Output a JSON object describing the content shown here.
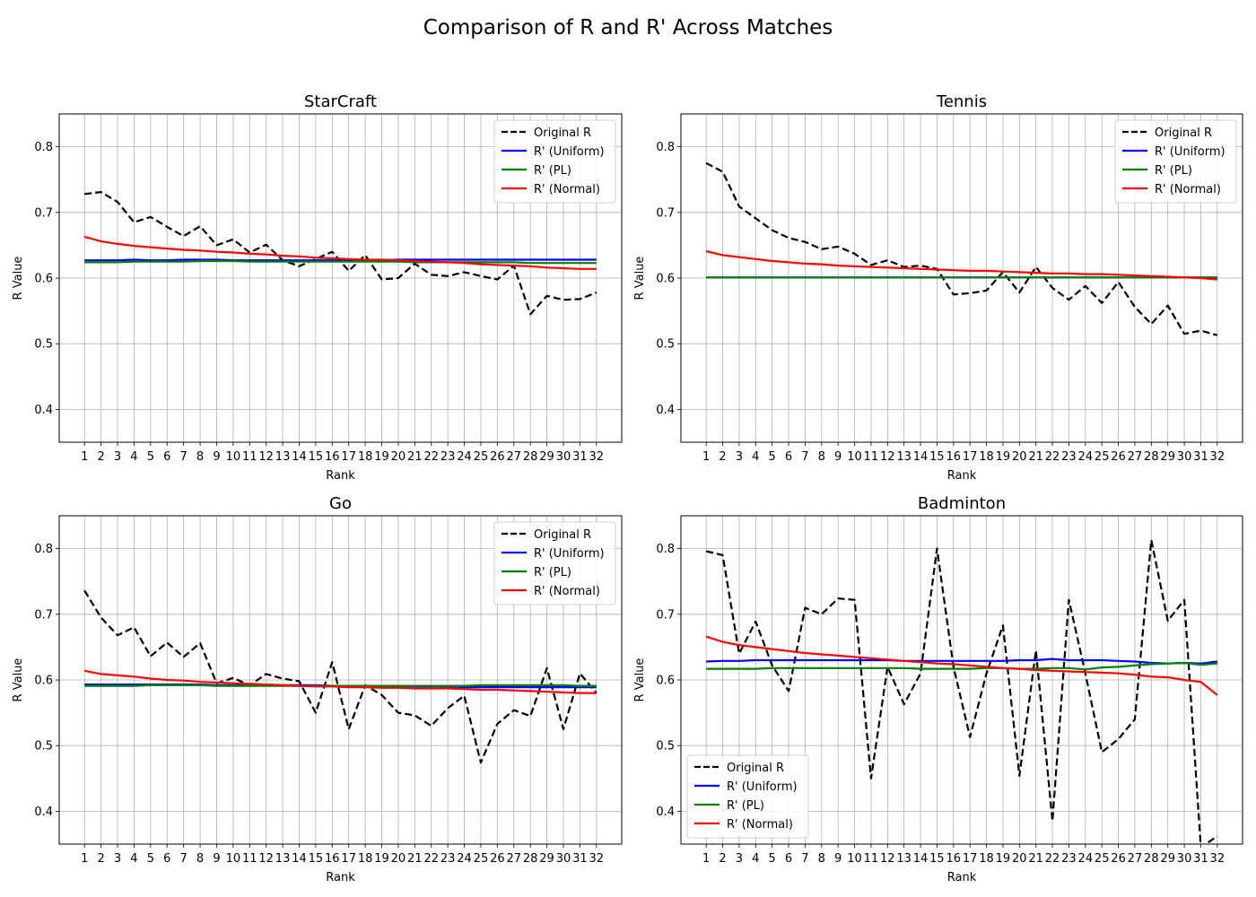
{
  "figure_title": "Comparison of R and R' Across Matches",
  "colors": {
    "original": "#000000",
    "uniform": "#0000ff",
    "pl": "#008000",
    "normal": "#ff0000",
    "grid": "#b0b0b0"
  },
  "chart_data": [
    {
      "type": "line",
      "title": "StarCraft",
      "xlabel": "Rank",
      "ylabel": "R Value",
      "ylim": [
        0.35,
        0.85
      ],
      "yticks": [
        0.4,
        0.5,
        0.6,
        0.7,
        0.8
      ],
      "grid": true,
      "legend_position": "upper-right",
      "x": [
        1,
        2,
        3,
        4,
        5,
        6,
        7,
        8,
        9,
        10,
        11,
        12,
        13,
        14,
        15,
        16,
        17,
        18,
        19,
        20,
        21,
        22,
        23,
        24,
        25,
        26,
        27,
        28,
        29,
        30,
        31,
        32
      ],
      "series": [
        {
          "name": "Original R",
          "color_key": "original",
          "dash": true,
          "values": [
            0.728,
            0.731,
            0.716,
            0.685,
            0.693,
            0.678,
            0.664,
            0.679,
            0.65,
            0.659,
            0.639,
            0.651,
            0.627,
            0.618,
            0.629,
            0.64,
            0.611,
            0.635,
            0.598,
            0.6,
            0.622,
            0.605,
            0.603,
            0.609,
            0.603,
            0.598,
            0.619,
            0.545,
            0.573,
            0.567,
            0.568,
            0.578
          ]
        },
        {
          "name": "R' (Uniform)",
          "color_key": "uniform",
          "dash": false,
          "values": [
            0.627,
            0.627,
            0.627,
            0.628,
            0.627,
            0.627,
            0.628,
            0.628,
            0.628,
            0.627,
            0.627,
            0.627,
            0.627,
            0.627,
            0.627,
            0.627,
            0.627,
            0.627,
            0.627,
            0.628,
            0.628,
            0.628,
            0.628,
            0.628,
            0.628,
            0.628,
            0.628,
            0.628,
            0.628,
            0.628,
            0.628,
            0.628
          ]
        },
        {
          "name": "R' (PL)",
          "color_key": "pl",
          "dash": false,
          "values": [
            0.624,
            0.624,
            0.624,
            0.625,
            0.625,
            0.625,
            0.625,
            0.626,
            0.626,
            0.626,
            0.625,
            0.625,
            0.625,
            0.625,
            0.625,
            0.625,
            0.625,
            0.625,
            0.625,
            0.625,
            0.624,
            0.624,
            0.624,
            0.624,
            0.624,
            0.624,
            0.624,
            0.623,
            0.623,
            0.623,
            0.623,
            0.623
          ]
        },
        {
          "name": "R' (Normal)",
          "color_key": "normal",
          "dash": false,
          "values": [
            0.663,
            0.656,
            0.652,
            0.649,
            0.647,
            0.645,
            0.643,
            0.642,
            0.64,
            0.639,
            0.637,
            0.636,
            0.634,
            0.633,
            0.631,
            0.63,
            0.629,
            0.628,
            0.628,
            0.627,
            0.626,
            0.625,
            0.624,
            0.623,
            0.621,
            0.62,
            0.619,
            0.618,
            0.616,
            0.615,
            0.614,
            0.614
          ]
        }
      ]
    },
    {
      "type": "line",
      "title": "Tennis",
      "xlabel": "Rank",
      "ylabel": "R Value",
      "ylim": [
        0.35,
        0.85
      ],
      "yticks": [
        0.4,
        0.5,
        0.6,
        0.7,
        0.8
      ],
      "grid": true,
      "legend_position": "upper-right",
      "x": [
        1,
        2,
        3,
        4,
        5,
        6,
        7,
        8,
        9,
        10,
        11,
        12,
        13,
        14,
        15,
        16,
        17,
        18,
        19,
        20,
        21,
        22,
        23,
        24,
        25,
        26,
        27,
        28,
        29,
        30,
        31,
        32
      ],
      "series": [
        {
          "name": "Original R",
          "color_key": "original",
          "dash": true,
          "values": [
            0.775,
            0.762,
            0.709,
            0.691,
            0.673,
            0.661,
            0.655,
            0.644,
            0.648,
            0.637,
            0.62,
            0.627,
            0.617,
            0.619,
            0.614,
            0.575,
            0.577,
            0.581,
            0.609,
            0.578,
            0.617,
            0.585,
            0.567,
            0.588,
            0.562,
            0.594,
            0.556,
            0.53,
            0.558,
            0.515,
            0.52,
            0.513
          ]
        },
        {
          "name": "R' (Uniform)",
          "color_key": "uniform",
          "dash": false,
          "values": [
            0.601,
            0.601,
            0.601,
            0.601,
            0.601,
            0.601,
            0.601,
            0.601,
            0.601,
            0.601,
            0.601,
            0.601,
            0.601,
            0.601,
            0.601,
            0.601,
            0.601,
            0.601,
            0.601,
            0.601,
            0.601,
            0.601,
            0.601,
            0.601,
            0.601,
            0.601,
            0.601,
            0.601,
            0.601,
            0.601,
            0.601,
            0.601
          ]
        },
        {
          "name": "R' (PL)",
          "color_key": "pl",
          "dash": false,
          "values": [
            0.601,
            0.601,
            0.601,
            0.601,
            0.601,
            0.601,
            0.601,
            0.601,
            0.601,
            0.601,
            0.601,
            0.601,
            0.601,
            0.601,
            0.601,
            0.601,
            0.601,
            0.601,
            0.601,
            0.601,
            0.601,
            0.601,
            0.601,
            0.601,
            0.601,
            0.601,
            0.601,
            0.601,
            0.601,
            0.601,
            0.601,
            0.601
          ]
        },
        {
          "name": "R' (Normal)",
          "color_key": "normal",
          "dash": false,
          "values": [
            0.641,
            0.635,
            0.632,
            0.629,
            0.626,
            0.624,
            0.622,
            0.621,
            0.619,
            0.618,
            0.617,
            0.616,
            0.615,
            0.614,
            0.613,
            0.612,
            0.611,
            0.611,
            0.61,
            0.609,
            0.608,
            0.607,
            0.607,
            0.606,
            0.606,
            0.605,
            0.604,
            0.603,
            0.602,
            0.601,
            0.6,
            0.598
          ]
        }
      ]
    },
    {
      "type": "line",
      "title": "Go",
      "xlabel": "Rank",
      "ylabel": "R Value",
      "ylim": [
        0.35,
        0.85
      ],
      "yticks": [
        0.4,
        0.5,
        0.6,
        0.7,
        0.8
      ],
      "grid": true,
      "legend_position": "upper-right",
      "x": [
        1,
        2,
        3,
        4,
        5,
        6,
        7,
        8,
        9,
        10,
        11,
        12,
        13,
        14,
        15,
        16,
        17,
        18,
        19,
        20,
        21,
        22,
        23,
        24,
        25,
        26,
        27,
        28,
        29,
        30,
        31,
        32
      ],
      "series": [
        {
          "name": "Original R",
          "color_key": "original",
          "dash": true,
          "values": [
            0.736,
            0.695,
            0.668,
            0.68,
            0.636,
            0.657,
            0.635,
            0.656,
            0.595,
            0.603,
            0.592,
            0.609,
            0.602,
            0.598,
            0.55,
            0.627,
            0.525,
            0.592,
            0.577,
            0.55,
            0.546,
            0.53,
            0.557,
            0.576,
            0.474,
            0.533,
            0.554,
            0.545,
            0.618,
            0.525,
            0.61,
            0.58
          ]
        },
        {
          "name": "R' (Uniform)",
          "color_key": "uniform",
          "dash": false,
          "values": [
            0.593,
            0.593,
            0.593,
            0.593,
            0.593,
            0.593,
            0.593,
            0.593,
            0.592,
            0.592,
            0.592,
            0.592,
            0.592,
            0.592,
            0.592,
            0.591,
            0.591,
            0.591,
            0.59,
            0.59,
            0.59,
            0.59,
            0.59,
            0.589,
            0.589,
            0.589,
            0.589,
            0.589,
            0.589,
            0.589,
            0.589,
            0.589
          ]
        },
        {
          "name": "R' (PL)",
          "color_key": "pl",
          "dash": false,
          "values": [
            0.591,
            0.591,
            0.591,
            0.591,
            0.592,
            0.592,
            0.592,
            0.592,
            0.591,
            0.591,
            0.591,
            0.591,
            0.591,
            0.591,
            0.591,
            0.591,
            0.591,
            0.591,
            0.591,
            0.591,
            0.591,
            0.591,
            0.591,
            0.591,
            0.592,
            0.592,
            0.592,
            0.592,
            0.592,
            0.592,
            0.591,
            0.591
          ]
        },
        {
          "name": "R' (Normal)",
          "color_key": "normal",
          "dash": false,
          "values": [
            0.614,
            0.609,
            0.607,
            0.605,
            0.602,
            0.6,
            0.599,
            0.597,
            0.596,
            0.595,
            0.594,
            0.593,
            0.592,
            0.591,
            0.59,
            0.59,
            0.589,
            0.589,
            0.588,
            0.588,
            0.587,
            0.587,
            0.587,
            0.586,
            0.585,
            0.585,
            0.584,
            0.583,
            0.582,
            0.581,
            0.58,
            0.58
          ]
        }
      ]
    },
    {
      "type": "line",
      "title": "Badminton",
      "xlabel": "Rank",
      "ylabel": "R Value",
      "ylim": [
        0.35,
        0.85
      ],
      "yticks": [
        0.4,
        0.5,
        0.6,
        0.7,
        0.8
      ],
      "grid": true,
      "legend_position": "lower-left",
      "x": [
        1,
        2,
        3,
        4,
        5,
        6,
        7,
        8,
        9,
        10,
        11,
        12,
        13,
        14,
        15,
        16,
        17,
        18,
        19,
        20,
        21,
        22,
        23,
        24,
        25,
        26,
        27,
        28,
        29,
        30,
        31,
        32
      ],
      "series": [
        {
          "name": "Original R",
          "color_key": "original",
          "dash": true,
          "values": [
            0.796,
            0.79,
            0.64,
            0.689,
            0.622,
            0.583,
            0.71,
            0.7,
            0.724,
            0.722,
            0.45,
            0.62,
            0.563,
            0.61,
            0.8,
            0.62,
            0.513,
            0.61,
            0.683,
            0.454,
            0.645,
            0.385,
            0.722,
            0.61,
            0.49,
            0.51,
            0.54,
            0.813,
            0.69,
            0.722,
            0.345,
            0.362
          ]
        },
        {
          "name": "R' (Uniform)",
          "color_key": "uniform",
          "dash": false,
          "values": [
            0.628,
            0.629,
            0.629,
            0.63,
            0.63,
            0.63,
            0.63,
            0.63,
            0.63,
            0.63,
            0.63,
            0.63,
            0.629,
            0.629,
            0.629,
            0.629,
            0.629,
            0.629,
            0.629,
            0.63,
            0.63,
            0.632,
            0.63,
            0.63,
            0.63,
            0.629,
            0.628,
            0.626,
            0.625,
            0.626,
            0.625,
            0.628
          ]
        },
        {
          "name": "R' (PL)",
          "color_key": "pl",
          "dash": false,
          "values": [
            0.617,
            0.617,
            0.617,
            0.617,
            0.618,
            0.618,
            0.618,
            0.618,
            0.618,
            0.618,
            0.618,
            0.618,
            0.618,
            0.617,
            0.617,
            0.617,
            0.617,
            0.618,
            0.618,
            0.617,
            0.617,
            0.618,
            0.618,
            0.616,
            0.619,
            0.62,
            0.622,
            0.624,
            0.625,
            0.626,
            0.623,
            0.625
          ]
        },
        {
          "name": "R' (Normal)",
          "color_key": "normal",
          "dash": false,
          "values": [
            0.666,
            0.658,
            0.653,
            0.65,
            0.647,
            0.644,
            0.641,
            0.639,
            0.637,
            0.635,
            0.633,
            0.631,
            0.629,
            0.627,
            0.625,
            0.624,
            0.622,
            0.62,
            0.618,
            0.617,
            0.615,
            0.614,
            0.613,
            0.612,
            0.611,
            0.61,
            0.608,
            0.605,
            0.604,
            0.6,
            0.597,
            0.577
          ]
        }
      ]
    }
  ]
}
